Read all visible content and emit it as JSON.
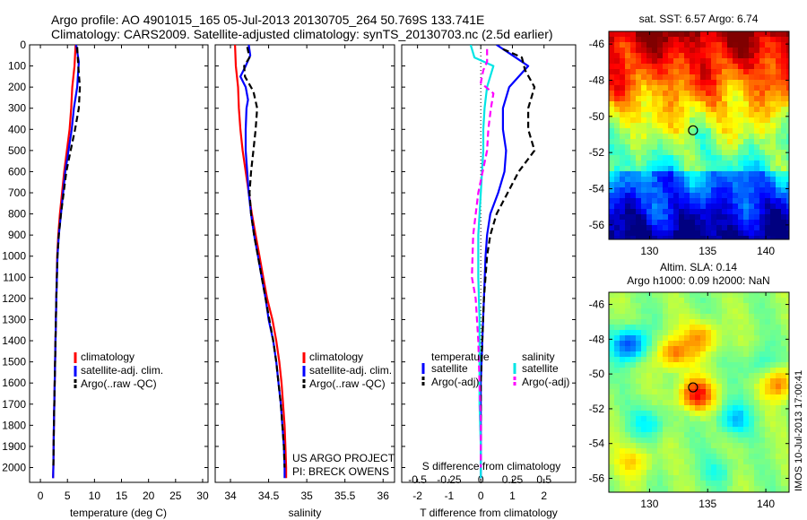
{
  "header": {
    "title_line1": "Argo profile: AO 4901015_165 05-Jul-2013 20130705_264 50.769S 133.741E",
    "title_line2": "Climatology: CARS2009. Satellite-adjusted climatology: synTS_20130703.nc (2.5d earlier)"
  },
  "colors": {
    "climatology": "#ff0000",
    "satellite": "#0000ff",
    "argo": "#000000",
    "salinity_satellite": "#00e5e5",
    "salinity_argo": "#ff00ff"
  },
  "credits": {
    "project": "US ARGO PROJECT",
    "pi": "PI: BRECK OWENS",
    "stamp": "IMOS 10-Jul-2013 17:00:41"
  },
  "chart_data": [
    {
      "type": "line",
      "xlabel": "temperature (deg C)",
      "ylabel": "",
      "xlim": [
        -2,
        31
      ],
      "ylim": [
        2070,
        0
      ],
      "xticks": [
        0,
        5,
        10,
        15,
        20,
        25,
        30
      ],
      "yticks": [
        0,
        100,
        200,
        300,
        400,
        500,
        600,
        700,
        800,
        900,
        1000,
        1100,
        1200,
        1300,
        1400,
        1500,
        1600,
        1700,
        1800,
        1900,
        2000
      ],
      "legend": [
        "climatology",
        "satellite-adj. clim.",
        "Argo(..raw -QC)"
      ],
      "legend_position": "bottom-right",
      "series": [
        {
          "name": "climatology",
          "color": "#ff0000",
          "dash": false,
          "points": [
            [
              6.5,
              0
            ],
            [
              6.3,
              100
            ],
            [
              5.9,
              200
            ],
            [
              5.7,
              300
            ],
            [
              5.4,
              400
            ],
            [
              4.9,
              500
            ],
            [
              4.4,
              600
            ],
            [
              4.0,
              700
            ],
            [
              3.6,
              800
            ],
            [
              3.3,
              900
            ],
            [
              3.1,
              1000
            ],
            [
              2.95,
              1200
            ],
            [
              2.8,
              1400
            ],
            [
              2.65,
              1600
            ],
            [
              2.5,
              1800
            ],
            [
              2.4,
              2000
            ],
            [
              2.35,
              2050
            ]
          ]
        },
        {
          "name": "satellite-adj. clim.",
          "color": "#0000ff",
          "dash": false,
          "points": [
            [
              6.6,
              0
            ],
            [
              7.1,
              80
            ],
            [
              6.8,
              200
            ],
            [
              6.2,
              300
            ],
            [
              5.8,
              400
            ],
            [
              5.2,
              500
            ],
            [
              4.6,
              600
            ],
            [
              4.2,
              700
            ],
            [
              3.8,
              800
            ],
            [
              3.4,
              900
            ],
            [
              3.15,
              1000
            ],
            [
              2.95,
              1200
            ],
            [
              2.8,
              1400
            ],
            [
              2.65,
              1600
            ],
            [
              2.5,
              1800
            ],
            [
              2.4,
              2000
            ],
            [
              2.35,
              2050
            ]
          ]
        },
        {
          "name": "Argo(..raw -QC)",
          "color": "#000000",
          "dash": true,
          "points": [
            [
              6.8,
              10
            ],
            [
              7.0,
              100
            ],
            [
              7.3,
              200
            ],
            [
              7.1,
              300
            ],
            [
              6.4,
              400
            ],
            [
              5.6,
              500
            ],
            [
              4.8,
              600
            ],
            [
              4.3,
              700
            ],
            [
              3.8,
              800
            ],
            [
              3.4,
              900
            ],
            [
              3.15,
              1000
            ],
            [
              2.95,
              1200
            ],
            [
              2.8,
              1400
            ],
            [
              2.65,
              1600
            ],
            [
              2.5,
              1800
            ],
            [
              2.4,
              2000
            ]
          ]
        }
      ]
    },
    {
      "type": "line",
      "xlabel": "salinity",
      "ylabel": "",
      "xlim": [
        33.8,
        36.15
      ],
      "ylim": [
        2070,
        0
      ],
      "xticks": [
        34,
        34.5,
        35,
        35.5,
        36
      ],
      "xtick_labels": [
        "34",
        "34.5",
        "35",
        "35.5",
        "36"
      ],
      "legend": [
        "climatology",
        "satellite-adj. clim.",
        "Argo(..raw -QC)"
      ],
      "legend_position": "bottom-right",
      "series": [
        {
          "name": "climatology",
          "color": "#ff0000",
          "dash": false,
          "points": [
            [
              34.06,
              0
            ],
            [
              34.07,
              100
            ],
            [
              34.1,
              200
            ],
            [
              34.11,
              300
            ],
            [
              34.13,
              400
            ],
            [
              34.16,
              500
            ],
            [
              34.2,
              600
            ],
            [
              34.24,
              700
            ],
            [
              34.28,
              800
            ],
            [
              34.33,
              900
            ],
            [
              34.38,
              1000
            ],
            [
              34.43,
              1100
            ],
            [
              34.48,
              1200
            ],
            [
              34.55,
              1300
            ],
            [
              34.6,
              1400
            ],
            [
              34.64,
              1500
            ],
            [
              34.67,
              1600
            ],
            [
              34.69,
              1700
            ],
            [
              34.71,
              1800
            ],
            [
              34.72,
              1900
            ],
            [
              34.73,
              2000
            ],
            [
              34.73,
              2050
            ]
          ]
        },
        {
          "name": "satellite-adj. clim.",
          "color": "#0000ff",
          "dash": false,
          "points": [
            [
              34.24,
              0
            ],
            [
              34.26,
              50
            ],
            [
              34.2,
              100
            ],
            [
              34.13,
              150
            ],
            [
              34.2,
              200
            ],
            [
              34.23,
              260
            ],
            [
              34.21,
              300
            ],
            [
              34.2,
              400
            ],
            [
              34.2,
              500
            ],
            [
              34.22,
              600
            ],
            [
              34.24,
              700
            ],
            [
              34.27,
              800
            ],
            [
              34.31,
              900
            ],
            [
              34.36,
              1000
            ],
            [
              34.41,
              1100
            ],
            [
              34.46,
              1200
            ],
            [
              34.5,
              1300
            ],
            [
              34.56,
              1400
            ],
            [
              34.6,
              1500
            ],
            [
              34.63,
              1600
            ],
            [
              34.66,
              1700
            ],
            [
              34.68,
              1800
            ],
            [
              34.7,
              1900
            ],
            [
              34.71,
              2000
            ],
            [
              34.71,
              2050
            ]
          ]
        },
        {
          "name": "Argo(..raw -QC)",
          "color": "#000000",
          "dash": true,
          "points": [
            [
              34.22,
              10
            ],
            [
              34.25,
              60
            ],
            [
              34.18,
              100
            ],
            [
              34.19,
              150
            ],
            [
              34.3,
              220
            ],
            [
              34.35,
              300
            ],
            [
              34.33,
              400
            ],
            [
              34.3,
              500
            ],
            [
              34.27,
              600
            ],
            [
              34.25,
              700
            ],
            [
              34.27,
              800
            ],
            [
              34.31,
              900
            ],
            [
              34.36,
              1000
            ],
            [
              34.41,
              1100
            ],
            [
              34.46,
              1200
            ],
            [
              34.51,
              1300
            ],
            [
              34.56,
              1400
            ],
            [
              34.6,
              1500
            ],
            [
              34.63,
              1600
            ],
            [
              34.66,
              1700
            ],
            [
              34.68,
              1800
            ],
            [
              34.7,
              1900
            ],
            [
              34.71,
              2000
            ]
          ]
        }
      ]
    },
    {
      "type": "line",
      "xlabel": "T difference from climatology",
      "xlabel_secondary": "S difference from climatology",
      "ylabel": "",
      "xlim": [
        -2.5,
        3.0
      ],
      "ylim": [
        2070,
        0
      ],
      "xticks": [
        -2,
        -1,
        0,
        1,
        2
      ],
      "xtick_labels": [
        "-2",
        "-1",
        "0",
        "1",
        "2"
      ],
      "secondary_xticks": [
        -0.5,
        -0.25,
        0,
        0.25,
        0.5
      ],
      "secondary_xtick_labels": [
        "-0.5",
        "-0.25",
        "0",
        "0.25",
        "0.5"
      ],
      "legend": [
        "temperature",
        "satellite",
        "Argo(-adj)",
        "salinity",
        "satellite",
        "Argo(-adj)"
      ],
      "legend_position": "bottom-right",
      "series": [
        {
          "name": "temperature satellite",
          "color": "#0000ff",
          "dash": false,
          "points": [
            [
              0.5,
              0
            ],
            [
              1.1,
              60
            ],
            [
              1.5,
              100
            ],
            [
              1.2,
              150
            ],
            [
              0.9,
              200
            ],
            [
              0.7,
              300
            ],
            [
              0.7,
              400
            ],
            [
              0.8,
              500
            ],
            [
              0.75,
              600
            ],
            [
              0.55,
              700
            ],
            [
              0.3,
              800
            ],
            [
              0.2,
              900
            ],
            [
              0.15,
              1000
            ],
            [
              0.1,
              1200
            ],
            [
              0.05,
              1400
            ],
            [
              0.0,
              1600
            ],
            [
              0.0,
              1800
            ],
            [
              0.0,
              2000
            ],
            [
              0.0,
              2050
            ]
          ]
        },
        {
          "name": "temperature Argo(-adj)",
          "color": "#000000",
          "dash": true,
          "points": [
            [
              0.7,
              20
            ],
            [
              1.3,
              60
            ],
            [
              1.4,
              120
            ],
            [
              1.7,
              200
            ],
            [
              1.5,
              300
            ],
            [
              1.5,
              400
            ],
            [
              1.7,
              500
            ],
            [
              1.2,
              600
            ],
            [
              0.85,
              700
            ],
            [
              0.5,
              800
            ],
            [
              0.3,
              900
            ],
            [
              0.2,
              1000
            ],
            [
              0.1,
              1200
            ],
            [
              0.05,
              1400
            ],
            [
              0.0,
              1600
            ],
            [
              0.0,
              1800
            ],
            [
              0.0,
              2000
            ]
          ]
        },
        {
          "name": "salinity satellite",
          "color": "#00e5e5",
          "dash": false,
          "points": [
            [
              -0.08,
              0
            ],
            [
              -0.05,
              60
            ],
            [
              0.1,
              100
            ],
            [
              0.05,
              200
            ],
            [
              0.03,
              300
            ],
            [
              0.02,
              400
            ],
            [
              0.02,
              500
            ],
            [
              0.0,
              700
            ],
            [
              -0.02,
              900
            ],
            [
              -0.02,
              1100
            ],
            [
              -0.01,
              1300
            ],
            [
              -0.01,
              1500
            ],
            [
              -0.01,
              1700
            ],
            [
              0.0,
              1900
            ],
            [
              0.0,
              2050
            ]
          ]
        },
        {
          "name": "salinity Argo(-adj)",
          "color": "#ff00ff",
          "dash": true,
          "points": [
            [
              0.05,
              20
            ],
            [
              0.05,
              80
            ],
            [
              0.02,
              120
            ],
            [
              0.0,
              180
            ],
            [
              0.1,
              230
            ],
            [
              0.08,
              300
            ],
            [
              0.06,
              400
            ],
            [
              0.05,
              500
            ],
            [
              -0.02,
              700
            ],
            [
              -0.06,
              900
            ],
            [
              -0.07,
              1100
            ],
            [
              -0.04,
              1200
            ],
            [
              -0.02,
              1400
            ],
            [
              -0.01,
              1600
            ],
            [
              0.0,
              1800
            ],
            [
              0.0,
              2000
            ]
          ]
        }
      ]
    },
    {
      "type": "heatmap",
      "title": "sat. SST: 6.57 Argo: 6.74",
      "xlim": [
        126.5,
        142
      ],
      "ylim": [
        -56.8,
        -45.3
      ],
      "xticks": [
        130,
        135,
        140
      ],
      "yticks": [
        -46,
        -48,
        -50,
        -52,
        -54,
        -56
      ],
      "colormap": "jet",
      "marker": {
        "lon": 133.741,
        "lat": -50.769
      }
    },
    {
      "type": "heatmap",
      "title": "Altim. SLA: 0.14",
      "subtitle": "Argo h1000: 0.09 h2000: NaN",
      "xlim": [
        126.5,
        142
      ],
      "ylim": [
        -56.8,
        -45.3
      ],
      "xticks": [
        130,
        135,
        140
      ],
      "yticks": [
        -46,
        -48,
        -50,
        -52,
        -54,
        -56
      ],
      "colormap": "jet",
      "marker": {
        "lon": 133.741,
        "lat": -50.769
      }
    }
  ]
}
